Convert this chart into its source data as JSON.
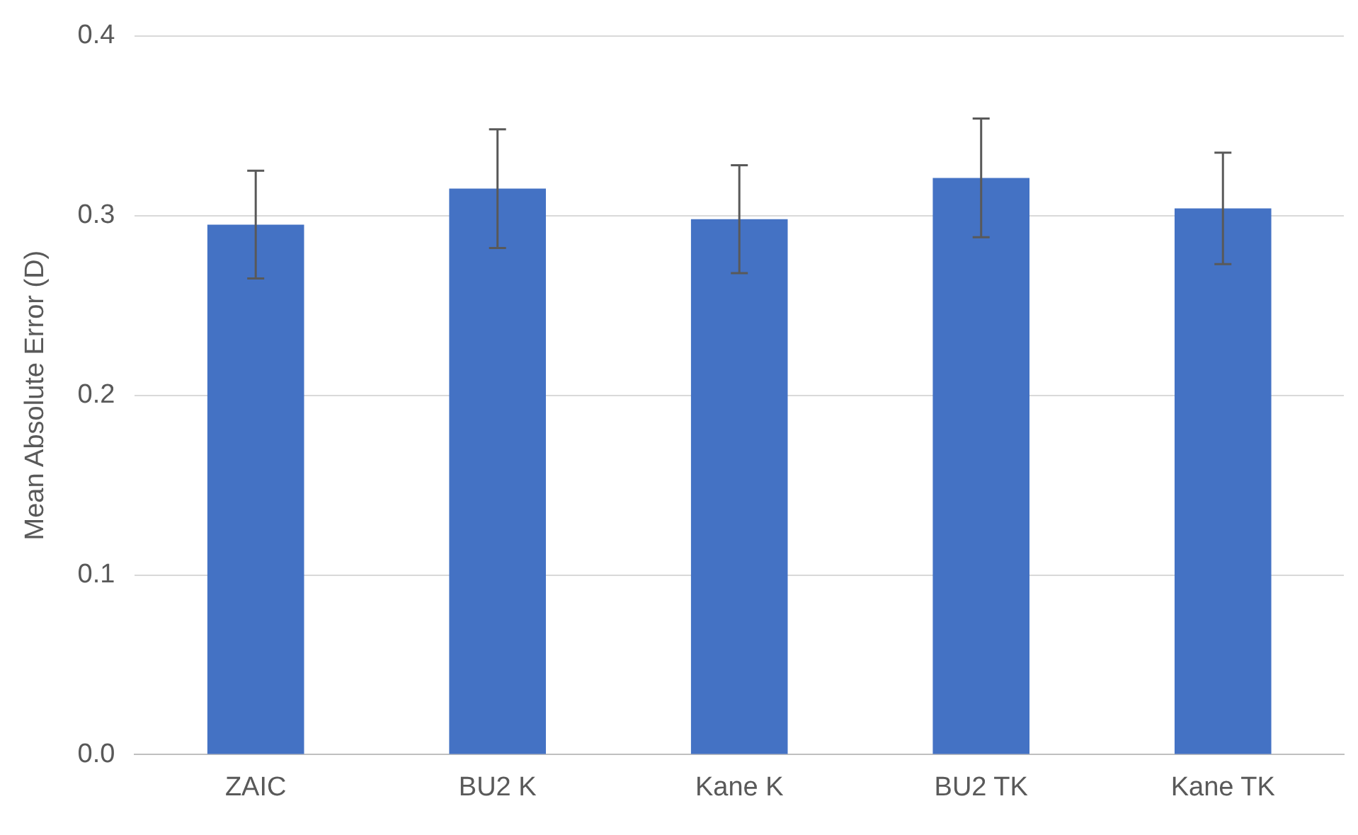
{
  "chart_data": {
    "type": "bar",
    "ylabel": "Mean Absolute Error (D)",
    "categories": [
      "ZAIC",
      "BU2 K",
      "Kane K",
      "BU2 TK",
      "Kane TK"
    ],
    "values": [
      0.295,
      0.315,
      0.298,
      0.321,
      0.304
    ],
    "errors": [
      0.03,
      0.033,
      0.03,
      0.033,
      0.031
    ],
    "color": "#4472c4",
    "ylim": [
      0,
      0.4
    ],
    "yticks": [
      {
        "value": 0,
        "label": "0.0"
      },
      {
        "value": 0.1,
        "label": "0.1"
      },
      {
        "value": 0.2,
        "label": "0.2"
      },
      {
        "value": 0.3,
        "label": "0.3"
      },
      {
        "value": 0.4,
        "label": "0.4"
      }
    ],
    "grid": "y"
  }
}
